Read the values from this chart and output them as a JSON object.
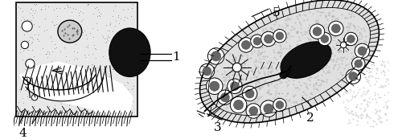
{
  "bg_color": "#ffffff",
  "label_fontsize": 10,
  "figsize": [
    5.0,
    1.73
  ],
  "dpi": 100,
  "body_stipple_color": "#aaaaaa",
  "line_color": "#000000",
  "dark_fill": "#111111",
  "gray_fill": "#777777",
  "light_gray": "#cccccc",
  "vacuole_border": "#333333",
  "hatch_color": "#444444"
}
